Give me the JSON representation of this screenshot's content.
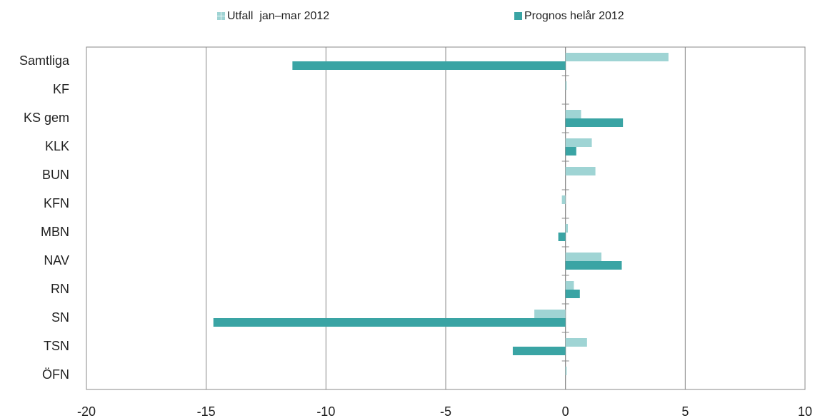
{
  "chart_data": {
    "type": "barh",
    "categories": [
      "Samtliga",
      "KF",
      "KS gem",
      "KLK",
      "BUN",
      "KFN",
      "MBN",
      "NAV",
      "RN",
      "SN",
      "TSN",
      "ÖFN"
    ],
    "series": [
      {
        "name": "Utfall  jan–mar 2012",
        "color": "#9fd4d4",
        "values": [
          4.3,
          0.05,
          0.65,
          1.1,
          1.25,
          -0.15,
          0.1,
          1.5,
          0.35,
          -1.3,
          0.9,
          0.05
        ]
      },
      {
        "name": "Prognos helår 2012",
        "color": "#3aa4a4",
        "values": [
          -11.4,
          0,
          2.4,
          0.45,
          0,
          0,
          -0.3,
          2.35,
          0.6,
          -14.7,
          -2.2,
          0
        ]
      }
    ],
    "xlim": [
      -20,
      10
    ],
    "xticks": [
      -20,
      -15,
      -10,
      -5,
      0,
      5,
      10
    ],
    "grid": true
  }
}
